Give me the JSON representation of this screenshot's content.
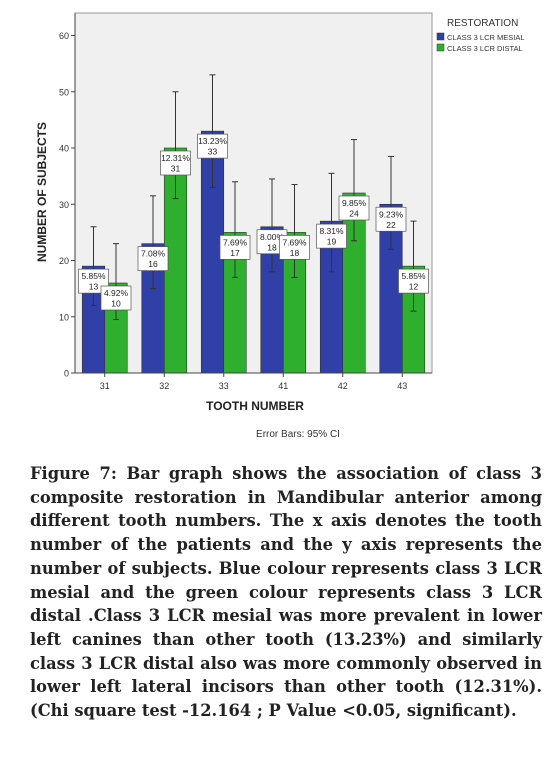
{
  "chart_data": {
    "type": "bar",
    "xlabel": "TOOTH NUMBER",
    "ylabel": "NUMBER OF SUBJECTS",
    "categories": [
      "31",
      "32",
      "33",
      "41",
      "42",
      "43"
    ],
    "ylim": [
      0,
      64
    ],
    "yticks": [
      "0",
      "10",
      "20",
      "30",
      "40",
      "50",
      "60"
    ],
    "legend": {
      "title": "RESTORATION",
      "placement": "top-right, outside plot"
    },
    "series": [
      {
        "name": "CLASS 3 LCR MESIAL",
        "color": "#3040a8",
        "values": [
          19,
          23,
          43,
          26,
          27,
          30
        ],
        "ci_low": [
          12,
          15,
          33,
          18,
          18,
          22
        ],
        "ci_high": [
          26,
          31.5,
          53,
          34.5,
          35.5,
          38.5
        ],
        "label_pct": [
          "5.85%",
          "7.08%",
          "13.23%",
          "8.00%",
          "8.31%",
          "9.23%"
        ],
        "label_n": [
          "13",
          "16",
          "33",
          "18",
          "19",
          "22"
        ]
      },
      {
        "name": "CLASS 3 LCR DISTAL",
        "color": "#2eb02e",
        "values": [
          16,
          40,
          25,
          25,
          32,
          19
        ],
        "ci_low": [
          9.5,
          31,
          17,
          17,
          23.5,
          11
        ],
        "ci_high": [
          23,
          50,
          34,
          33.5,
          41.5,
          27
        ],
        "label_pct": [
          "4.92%",
          "12.31%",
          "7.69%",
          "7.69%",
          "9.85%",
          "5.85%"
        ],
        "label_n": [
          "10",
          "31",
          "17",
          "18",
          "24",
          "12"
        ]
      }
    ],
    "note": "Error Bars: 95% CI"
  },
  "caption": "Figure 7: Bar graph shows the association of class 3 composite restoration in Mandibular anterior among different tooth numbers. The x axis denotes the tooth number of the patients and the y axis represents the number of subjects. Blue colour represents class 3 LCR mesial and the green colour represents class 3 LCR distal .Class 3 LCR mesial was more prevalent in lower left canines than other tooth (13.23%) and similarly class 3 LCR distal also was more commonly observed in lower left lateral incisors than other tooth (12.31%). (Chi square test -12.164 ; P Value <0.05, significant)."
}
